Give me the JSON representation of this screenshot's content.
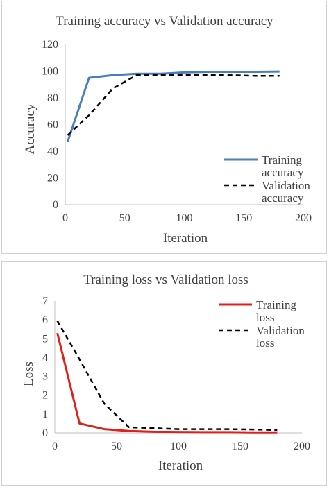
{
  "chart_data": [
    {
      "type": "line",
      "title": "Training accuracy vs Validation accuracy",
      "xlabel": "Iteration",
      "ylabel": "Accuracy",
      "xlim": [
        0,
        200
      ],
      "ylim": [
        0,
        120
      ],
      "xticks": [
        "0",
        "50",
        "100",
        "150",
        "200"
      ],
      "yticks": [
        "0",
        "20",
        "40",
        "60",
        "80",
        "100",
        "120"
      ],
      "grid": false,
      "legend_position": "right",
      "series": [
        {
          "name": "Training accuracy",
          "legend_lines": [
            "Training",
            "accuracy"
          ],
          "color": "#4a7ebb",
          "style": "solid",
          "x": [
            2,
            20,
            40,
            60,
            80,
            100,
            120,
            140,
            160,
            180
          ],
          "y": [
            47,
            95,
            97,
            98,
            98,
            99,
            99.5,
            99.5,
            99.5,
            99.7
          ]
        },
        {
          "name": "Validation accuracy",
          "legend_lines": [
            "Validation",
            "accuracy"
          ],
          "color": "#000000",
          "style": "dashed",
          "x": [
            2,
            20,
            40,
            60,
            80,
            100,
            120,
            140,
            160,
            180
          ],
          "y": [
            52,
            67,
            87,
            97,
            97,
            97,
            97,
            97,
            96.5,
            96.5
          ]
        }
      ]
    },
    {
      "type": "line",
      "title": "Training loss vs Validation loss",
      "xlabel": "Iteration",
      "ylabel": "Loss",
      "xlim": [
        0,
        200
      ],
      "ylim": [
        0,
        7
      ],
      "xticks": [
        "0",
        "50",
        "100",
        "150",
        "200"
      ],
      "yticks": [
        "0",
        "1",
        "2",
        "3",
        "4",
        "5",
        "6",
        "7"
      ],
      "grid": false,
      "legend_position": "top-right",
      "series": [
        {
          "name": "Training loss",
          "legend_lines": [
            "Training",
            "loss"
          ],
          "color": "#e0201b",
          "style": "solid",
          "x": [
            2,
            20,
            40,
            60,
            80,
            100,
            120,
            140,
            160,
            180
          ],
          "y": [
            5.3,
            0.5,
            0.2,
            0.1,
            0.06,
            0.05,
            0.04,
            0.04,
            0.03,
            0.03
          ]
        },
        {
          "name": "Validation loss",
          "legend_lines": [
            "Validation",
            "loss"
          ],
          "color": "#000000",
          "style": "dashed",
          "x": [
            2,
            20,
            40,
            60,
            80,
            100,
            120,
            140,
            160,
            180
          ],
          "y": [
            5.95,
            3.9,
            1.55,
            0.3,
            0.25,
            0.2,
            0.2,
            0.2,
            0.18,
            0.15
          ]
        }
      ]
    }
  ]
}
